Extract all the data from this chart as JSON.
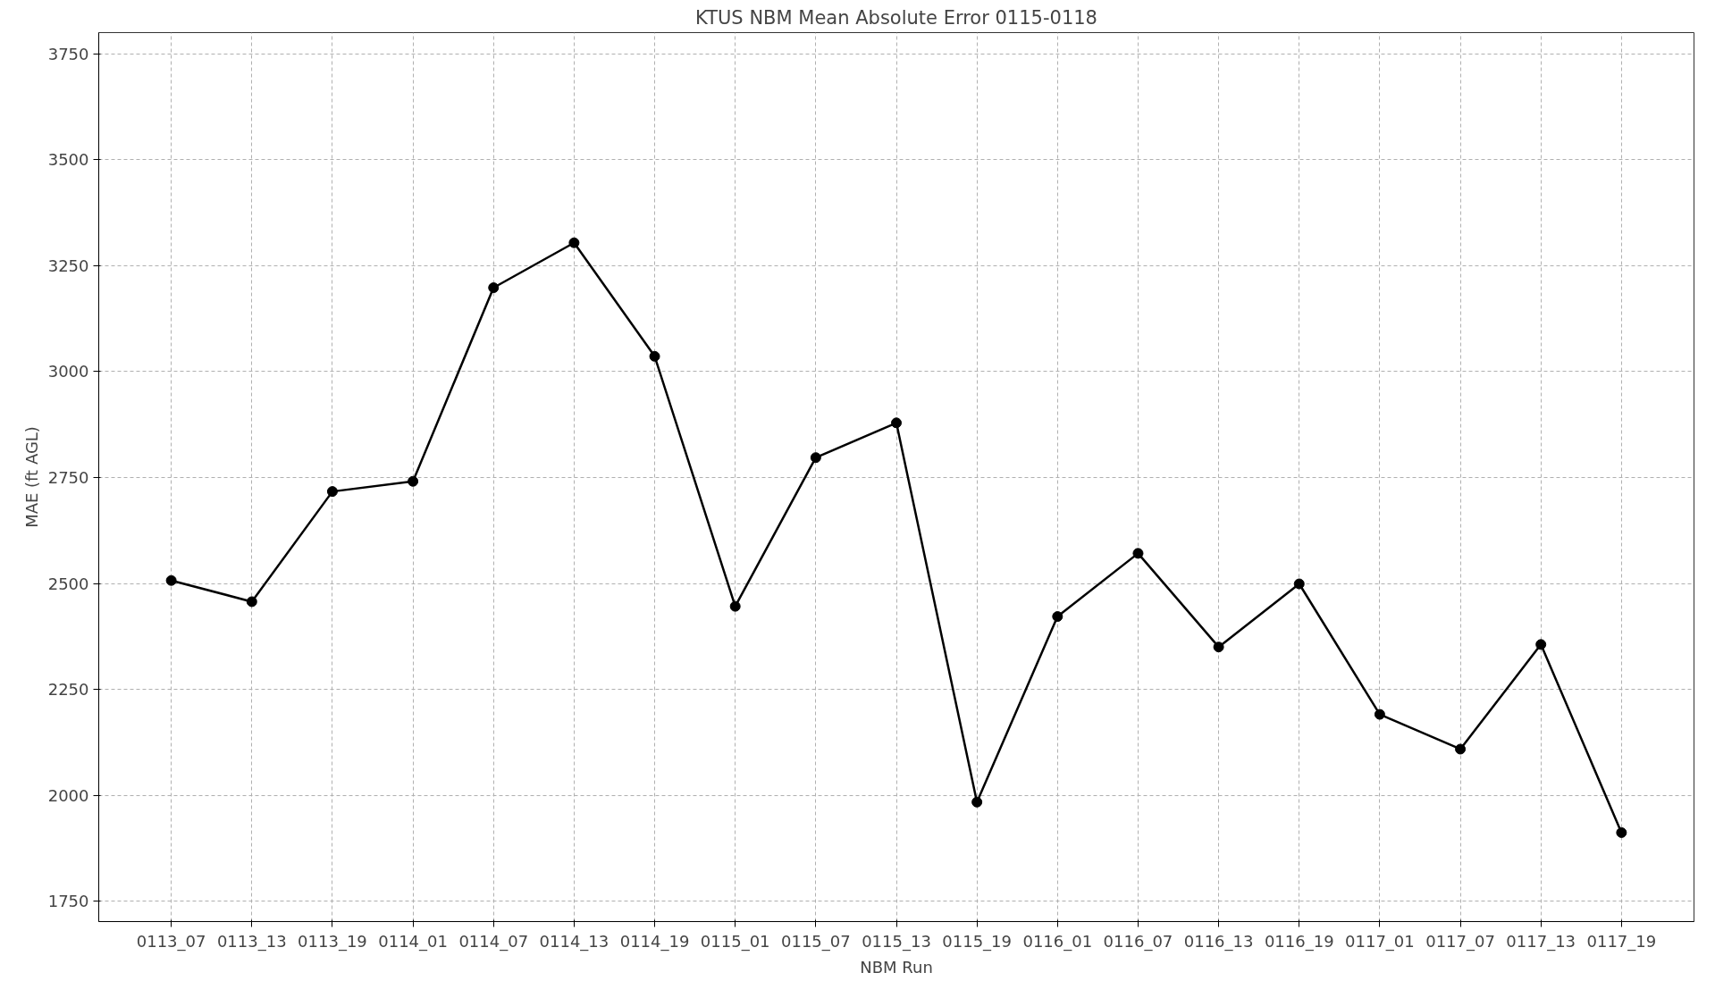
{
  "chart_data": {
    "type": "line",
    "title": "KTUS NBM Mean Absolute Error 0115-0118",
    "xlabel": "NBM Run",
    "ylabel": "MAE (ft AGL)",
    "categories": [
      "0113_07",
      "0113_13",
      "0113_19",
      "0114_01",
      "0114_07",
      "0114_13",
      "0114_19",
      "0115_01",
      "0115_07",
      "0115_13",
      "0115_19",
      "0116_01",
      "0116_07",
      "0116_13",
      "0116_19",
      "0117_01",
      "0117_07",
      "0117_13",
      "0117_19"
    ],
    "series": [
      {
        "color": "#000000",
        "values": [
          2507,
          2457,
          2717,
          2741,
          3198,
          3304,
          3036,
          2446,
          2797,
          2879,
          1984,
          2422,
          2571,
          2350,
          2499,
          2191,
          2109,
          2356,
          1912
        ]
      }
    ],
    "ylim": [
      1702,
      3800
    ],
    "yticks": [
      1750,
      2000,
      2250,
      2500,
      2750,
      3000,
      3250,
      3500,
      3750
    ],
    "grid": true,
    "marker": "circle",
    "line_style": "solid"
  }
}
